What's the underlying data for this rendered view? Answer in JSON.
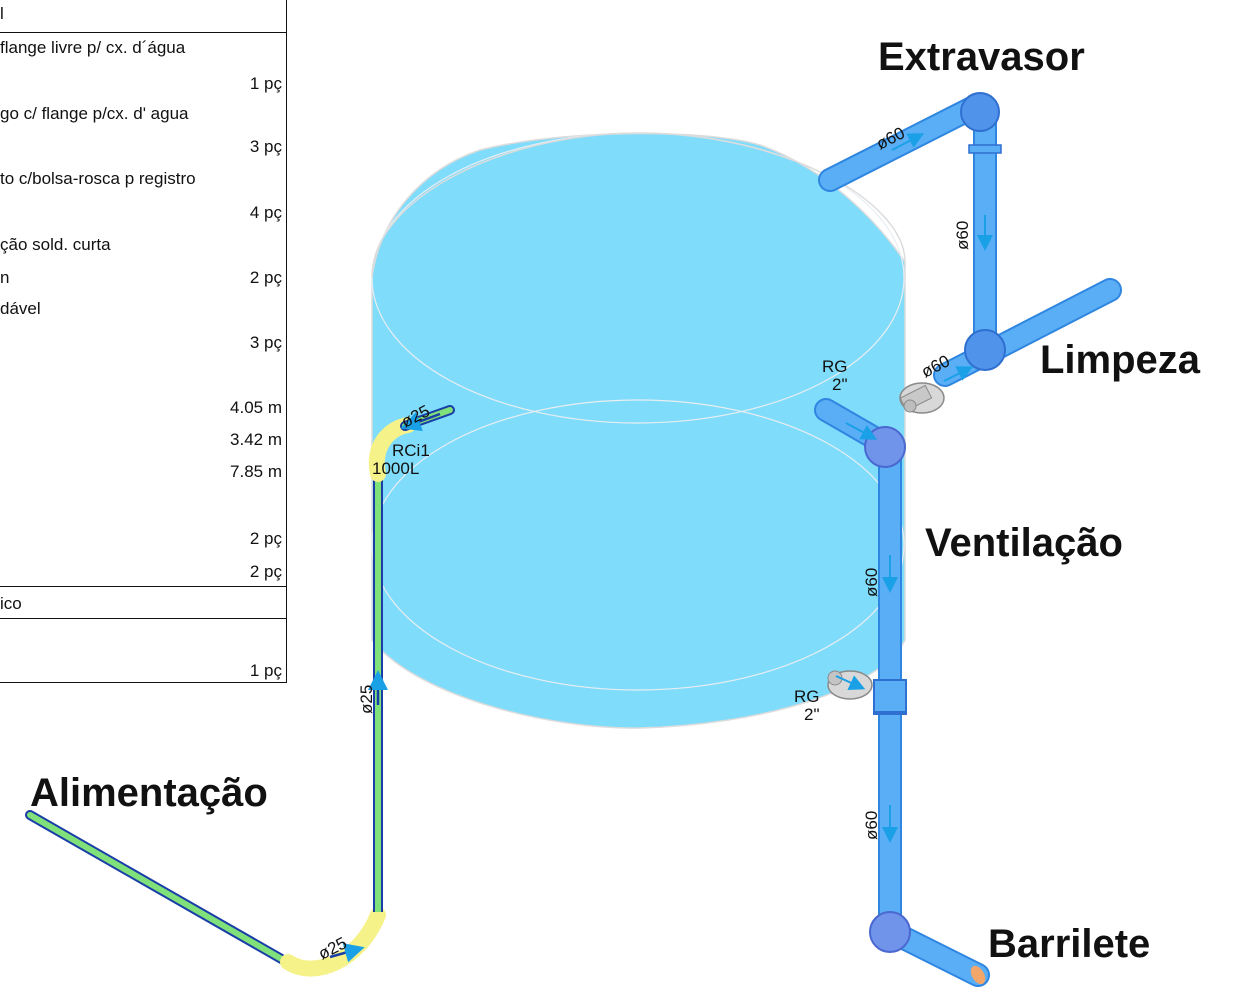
{
  "materials": {
    "header": "l",
    "rows": [
      {
        "desc": "flange livre p/ cx. d´água",
        "qty": ""
      },
      {
        "desc": "",
        "qty": "1 pç"
      },
      {
        "desc": "go c/ flange p/cx. d' agua",
        "qty": ""
      },
      {
        "desc": "",
        "qty": "3 pç"
      },
      {
        "desc": "to c/bolsa-rosca p registro",
        "qty": ""
      },
      {
        "desc": "",
        "qty": "4 pç"
      },
      {
        "desc": "ção sold. curta",
        "qty": ""
      },
      {
        "desc": "n",
        "qty": "2 pç"
      },
      {
        "desc": "dável",
        "qty": ""
      },
      {
        "desc": "",
        "qty": "3 pç"
      },
      {
        "desc": "",
        "qty": "4.05 m"
      },
      {
        "desc": "",
        "qty": "3.42 m"
      },
      {
        "desc": "",
        "qty": "7.85 m"
      },
      {
        "desc": "",
        "qty": "2 pç"
      },
      {
        "desc": "",
        "qty": "2 pç"
      }
    ],
    "section2_header": "ico",
    "section2_rows": [
      {
        "desc": "",
        "qty": "1 pç"
      }
    ]
  },
  "labels": {
    "extravasor": "Extravasor",
    "limpeza": "Limpeza",
    "ventilacao": "Ventilação",
    "alimentacao": "Alimentação",
    "barrilete": "Barrilete"
  },
  "annotations": {
    "d60": "ø60",
    "d25": "ø25",
    "rg": "RG",
    "rg_size": "2\"",
    "tank_id": "RCi1",
    "tank_capacity": "1000L"
  },
  "colors": {
    "tank": "#80dcfb",
    "pipe_blue": "#5aaef5",
    "pipe_blue_dark": "#2f86e0",
    "pipe_green": "#80e07a",
    "fitting_yellow": "#f6f28a",
    "valve_gray": "#c8c8c8",
    "flow_arrow": "#1aa0e6"
  }
}
